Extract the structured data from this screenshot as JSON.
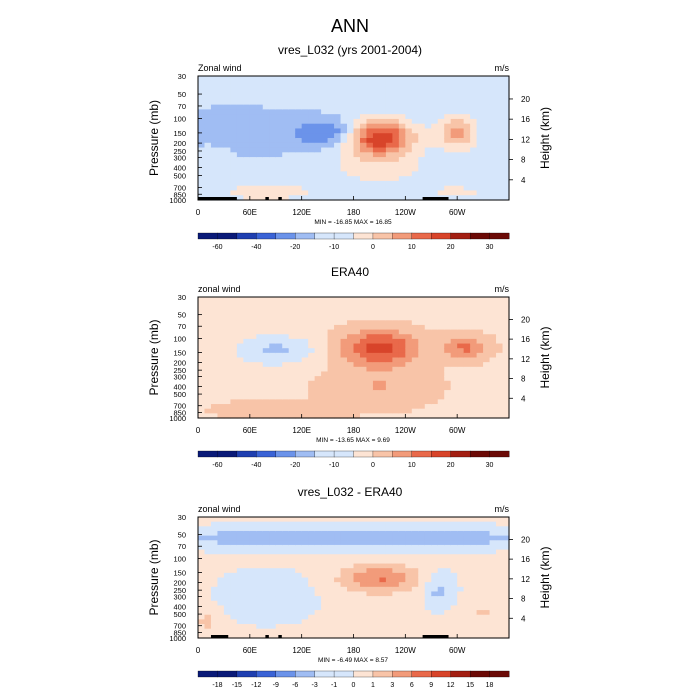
{
  "figure": {
    "title": "ANN",
    "colors": {
      "blues": [
        "#0a1a78",
        "#1f3fb0",
        "#3a63d6",
        "#6b93ea",
        "#a0bdf3",
        "#d6e6fb"
      ],
      "reds": [
        "#fde4d4",
        "#f8c4a8",
        "#f29b7a",
        "#e9694a",
        "#d8442a",
        "#a31f12",
        "#6b0a06"
      ]
    }
  },
  "chart_data": [
    {
      "type": "heatmap",
      "id": "model",
      "title": "vres_L032 (yrs 2001-2004)",
      "left_label": "Zonal wind",
      "right_label": "m/s",
      "ylabel": "Pressure (mb)",
      "ylabel_right": "Height (km)",
      "x_ticks": [
        "0",
        "60E",
        "120E",
        "180",
        "120W",
        "60W"
      ],
      "x_tick_lon": [
        0,
        60,
        120,
        180,
        240,
        300
      ],
      "xlim": [
        0,
        360
      ],
      "y_ticks": [
        "30",
        "50",
        "70",
        "100",
        "150",
        "200",
        "250",
        "300",
        "400",
        "500",
        "700",
        "850",
        "1000"
      ],
      "y_tick_p": [
        30,
        50,
        70,
        100,
        150,
        200,
        250,
        300,
        400,
        500,
        700,
        850,
        1000
      ],
      "ylim": [
        1000,
        30
      ],
      "height_ticks": [
        "20",
        "16",
        "12",
        "8",
        "4"
      ],
      "height_km": [
        20,
        16,
        12,
        8,
        4
      ],
      "minmax": "MIN = -16.85  MAX =  16.85",
      "colorbar_labels": [
        "-60",
        "-40",
        "-20",
        "-10",
        "0",
        "10",
        "20",
        "30"
      ],
      "colorbar_label_slots": [
        1,
        3,
        5,
        7,
        9,
        11,
        13,
        15
      ],
      "features": [
        {
          "lon": 150,
          "p": 150,
          "value": -6,
          "sx": 40,
          "sp": 0.38
        },
        {
          "lon": 45,
          "p": 150,
          "value": -3,
          "sx": 60,
          "sp": 0.6
        },
        {
          "lon": 210,
          "p": 170,
          "value": 14,
          "sx": 38,
          "sp": 0.5
        },
        {
          "lon": 300,
          "p": 150,
          "value": 8,
          "sx": 22,
          "sp": 0.45
        },
        {
          "lon": 210,
          "p": 400,
          "value": 3,
          "sx": 60,
          "sp": 0.6
        },
        {
          "lon": 80,
          "p": 800,
          "value": 4,
          "sx": 55,
          "sp": 0.22
        },
        {
          "lon": 300,
          "p": 800,
          "value": 3,
          "sx": 30,
          "sp": 0.2
        },
        {
          "lon": 20,
          "p": 300,
          "value": 2,
          "sx": 25,
          "sp": 0.5
        }
      ],
      "base_value": -2,
      "topo": [
        [
          0,
          45
        ],
        [
          78,
          82
        ],
        [
          93,
          97
        ],
        [
          260,
          290
        ]
      ]
    },
    {
      "type": "heatmap",
      "id": "era40",
      "title": "ERA40",
      "left_label": "zonal wind",
      "right_label": "m/s",
      "ylabel": "Pressure (mb)",
      "ylabel_right": "Height (km)",
      "x_ticks": [
        "0",
        "60E",
        "120E",
        "180",
        "120W",
        "60W"
      ],
      "x_tick_lon": [
        0,
        60,
        120,
        180,
        240,
        300
      ],
      "xlim": [
        0,
        360
      ],
      "y_ticks": [
        "30",
        "50",
        "70",
        "100",
        "150",
        "200",
        "250",
        "300",
        "400",
        "500",
        "700",
        "850",
        "1000"
      ],
      "y_tick_p": [
        30,
        50,
        70,
        100,
        150,
        200,
        250,
        300,
        400,
        500,
        700,
        850,
        1000
      ],
      "ylim": [
        1000,
        30
      ],
      "height_ticks": [
        "20",
        "16",
        "12",
        "8",
        "4"
      ],
      "height_km": [
        20,
        16,
        12,
        8,
        4
      ],
      "minmax": "MIN = -13.65  MAX =   9.69",
      "colorbar_labels": [
        "-60",
        "-40",
        "-20",
        "-10",
        "0",
        "10",
        "20",
        "30"
      ],
      "colorbar_label_slots": [
        1,
        3,
        5,
        7,
        9,
        11,
        13,
        15
      ],
      "features": [
        {
          "lon": 90,
          "p": 140,
          "value": -5,
          "sx": 50,
          "sp": 0.45
        },
        {
          "lon": 210,
          "p": 130,
          "value": 9,
          "sx": 45,
          "sp": 0.5
        },
        {
          "lon": 310,
          "p": 130,
          "value": 6,
          "sx": 25,
          "sp": 0.35
        },
        {
          "lon": 90,
          "p": 800,
          "value": 3,
          "sx": 60,
          "sp": 0.25
        },
        {
          "lon": 210,
          "p": 400,
          "value": 3,
          "sx": 60,
          "sp": 0.6
        }
      ],
      "base_value": 2,
      "topo": []
    },
    {
      "type": "heatmap",
      "id": "diff",
      "title": "vres_L032 - ERA40",
      "left_label": "zonal wind",
      "right_label": "m/s",
      "ylabel": "Pressure (mb)",
      "ylabel_right": "Height (km)",
      "x_ticks": [
        "0",
        "60E",
        "120E",
        "180",
        "120W",
        "60W"
      ],
      "x_tick_lon": [
        0,
        60,
        120,
        180,
        240,
        300
      ],
      "xlim": [
        0,
        360
      ],
      "y_ticks": [
        "30",
        "50",
        "70",
        "100",
        "150",
        "200",
        "250",
        "300",
        "400",
        "500",
        "700",
        "850",
        "1000"
      ],
      "y_tick_p": [
        30,
        50,
        70,
        100,
        150,
        200,
        250,
        300,
        400,
        500,
        700,
        850,
        1000
      ],
      "ylim": [
        1000,
        30
      ],
      "height_ticks": [
        "20",
        "16",
        "12",
        "8",
        "4"
      ],
      "height_km": [
        20,
        16,
        12,
        8,
        4
      ],
      "minmax": "MIN =  -6.49  MAX =   8.57",
      "colorbar_labels": [
        "-18",
        "-15",
        "-12",
        "-9",
        "-6",
        "-3",
        "-1",
        "0",
        "1",
        "3",
        "6",
        "9",
        "12",
        "15",
        "18"
      ],
      "colorbar_label_slots": [
        1,
        2,
        3,
        4,
        5,
        6,
        7,
        8,
        9,
        10,
        11,
        12,
        13,
        14,
        15
      ],
      "features": [
        {
          "lon": 180,
          "p": 55,
          "value": -5,
          "sx": 300,
          "sp": 0.3
        },
        {
          "lon": 210,
          "p": 180,
          "value": 7,
          "sx": 45,
          "sp": 0.4
        },
        {
          "lon": 280,
          "p": 250,
          "value": -4,
          "sx": 18,
          "sp": 0.5
        },
        {
          "lon": 80,
          "p": 300,
          "value": -2,
          "sx": 60,
          "sp": 0.8
        },
        {
          "lon": 10,
          "p": 600,
          "value": 3,
          "sx": 12,
          "sp": 0.35
        },
        {
          "lon": 330,
          "p": 500,
          "value": 2,
          "sx": 20,
          "sp": 0.5
        }
      ],
      "base_value": 0.6,
      "topo": [
        [
          15,
          35
        ],
        [
          78,
          82
        ],
        [
          93,
          97
        ],
        [
          260,
          290
        ]
      ]
    }
  ]
}
